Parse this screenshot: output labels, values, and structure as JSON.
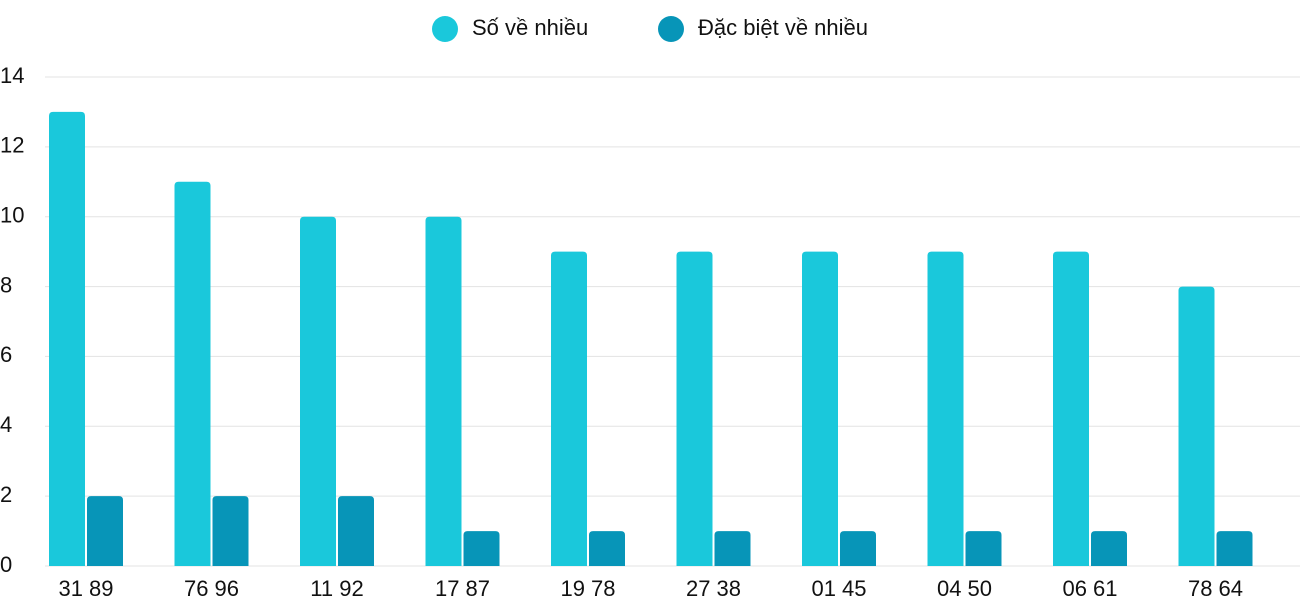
{
  "chart_data": {
    "type": "bar",
    "categories": [
      "31 89",
      "76 96",
      "11 92",
      "17 87",
      "19 78",
      "27 38",
      "01 45",
      "04 50",
      "06 61",
      "78 64"
    ],
    "series": [
      {
        "name": "Số về nhiều",
        "color": "#1ac8db",
        "values": [
          13,
          11,
          10,
          10,
          9,
          9,
          9,
          9,
          9,
          8
        ]
      },
      {
        "name": "Đặc biệt về nhiều",
        "color": "#0795b8",
        "values": [
          2,
          2,
          2,
          1,
          1,
          1,
          1,
          1,
          1,
          1
        ]
      }
    ],
    "ylim": [
      0,
      14
    ],
    "yticks": [
      0,
      2,
      4,
      6,
      8,
      10,
      12,
      14
    ],
    "grid": true,
    "legend": "top"
  }
}
